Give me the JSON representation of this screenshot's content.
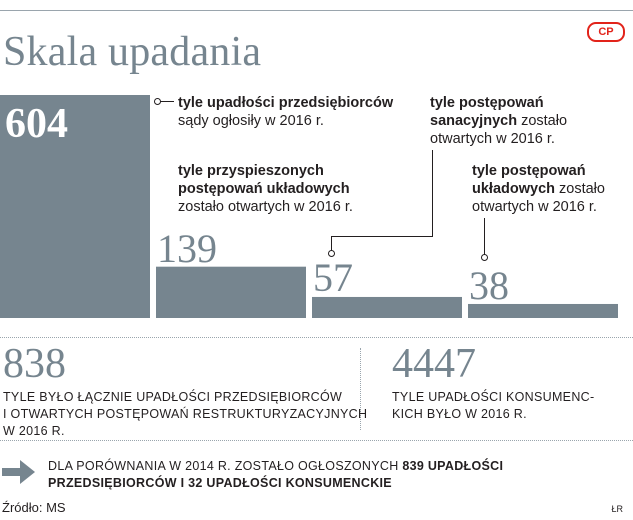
{
  "header": {
    "title": "Skala upadania",
    "logo_text": "CP"
  },
  "chart_data": {
    "type": "bar",
    "categories": [
      "upadłości przedsiębiorców",
      "przyspieszone postępowania układowe",
      "postępowania sanacyjne",
      "postępowania układowe"
    ],
    "values": [
      604,
      139,
      57,
      38
    ],
    "value_labels": [
      "604",
      "139",
      "57",
      "38"
    ],
    "title": "Skala upadania",
    "color": "#76858f"
  },
  "notes": {
    "n604": {
      "bold": "tyle upadłości przedsiębiorców",
      "rest": "sądy ogłosiły w 2016 r."
    },
    "n139": {
      "bold1": "tyle przyspieszonych",
      "bold2": "postępowań układowych",
      "rest": "zostało otwartych w 2016 r."
    },
    "n57": {
      "bold1": "tyle postępowań",
      "bold2": "sanacyjnych",
      "rest1": " zostało",
      "rest2": "otwartych w 2016 r."
    },
    "n38": {
      "bold1": "tyle postępowań",
      "bold2": "układowych",
      "rest1": " zostało",
      "rest2": "otwartych w 2016 r."
    }
  },
  "stats": {
    "left": {
      "value": "838",
      "line1": "TYLE BYŁO ŁĄCZNIE UPADŁOŚCI PRZEDSIĘBIORCÓW",
      "line2": "I OTWARTYCH POSTĘPOWAŃ RESTRUKTURYZACYJNYCH",
      "line3": "W 2016 R."
    },
    "right": {
      "value": "4447",
      "line1": "TYLE UPADŁOŚCI KONSUMENC-",
      "line2": "KICH BYŁO W 2016 R."
    }
  },
  "comparison": {
    "prefix": "DLA PORÓWNANIA W 2014 R. ZOSTAŁO OGŁOSZONYCH ",
    "bold1": "839 UPADŁOŚCI",
    "bold2": "PRZEDSIĘBIORCÓW I 32 UPADŁOŚCI KONSUMENCKIE"
  },
  "footer": {
    "source": "Źródło: MS",
    "credit": "ŁR"
  },
  "colors": {
    "bar": "#76858f",
    "accent_logo": "#e2231a",
    "arrow": "#76858f"
  }
}
